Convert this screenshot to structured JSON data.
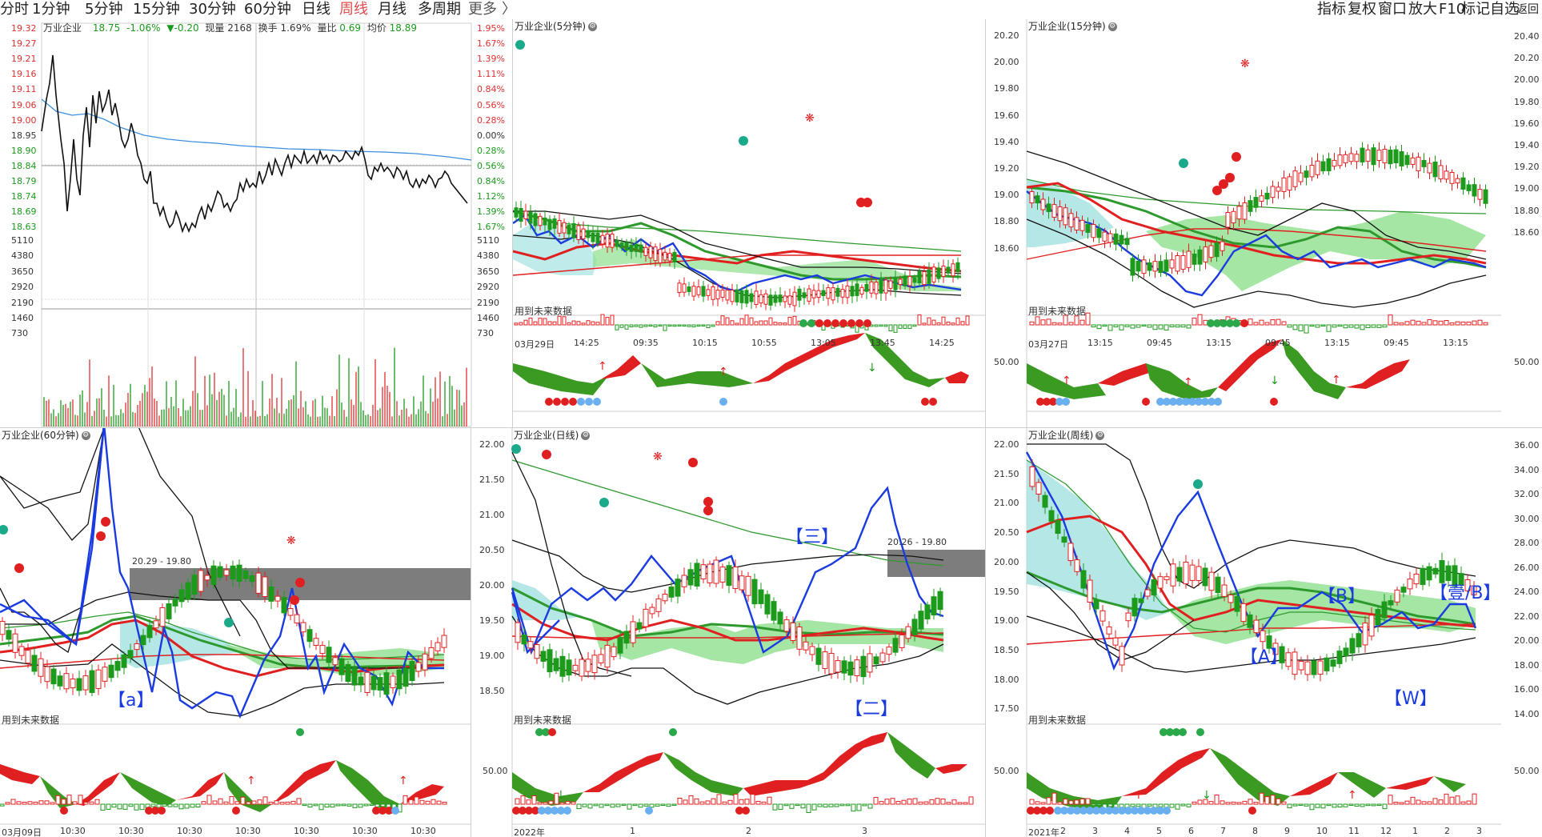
{
  "toolbar": {
    "tabs": [
      {
        "label": "分时"
      },
      {
        "label": "1分钟"
      },
      {
        "label": "5分钟"
      },
      {
        "label": "15分钟"
      },
      {
        "label": "30分钟"
      },
      {
        "label": "60分钟"
      },
      {
        "label": "日线"
      },
      {
        "label": "周线",
        "active": true
      },
      {
        "label": "月线"
      },
      {
        "label": "多周期"
      },
      {
        "label": "更多"
      }
    ],
    "more_chevron": "〉",
    "right_tools": [
      {
        "label": "指标"
      },
      {
        "label": "复权"
      },
      {
        "label": "窗口"
      },
      {
        "label": "放大"
      },
      {
        "label": "F10"
      },
      {
        "label": "标记"
      },
      {
        "label": "自选"
      },
      {
        "label": "返回"
      }
    ]
  },
  "intraday": {
    "name": "万业企业",
    "price": "18.75",
    "change_pct": "-1.06%",
    "change": "▼-0.20",
    "volume_label": "现量",
    "volume": "2168",
    "turnover_label": "换手",
    "turnover": "1.69%",
    "vol_ratio_label": "量比",
    "vol_ratio": "0.69",
    "avg_label": "均价",
    "avg_price": "18.89",
    "price_axis_left": [
      "19.32",
      "19.27",
      "19.21",
      "19.16",
      "19.11",
      "19.06",
      "19.00",
      "18.95",
      "18.90",
      "18.84",
      "18.79",
      "18.74",
      "18.69",
      "18.63"
    ],
    "pct_axis_right": [
      "1.95%",
      "1.67%",
      "1.39%",
      "1.11%",
      "0.84%",
      "0.56%",
      "0.28%",
      "0.00%",
      "0.28%",
      "0.56%",
      "0.84%",
      "1.12%",
      "1.39%",
      "1.67%"
    ],
    "vol_axis": [
      "5110",
      "4380",
      "3650",
      "2920",
      "2190",
      "1460",
      "730"
    ],
    "colors": {
      "up": "#e03030",
      "down": "#1c9a1c",
      "price": "#111111",
      "avg": "#3b8fe0"
    }
  },
  "panels": {
    "p5": {
      "title": "万业企业(5分钟)",
      "future_note": "用到未来数据",
      "price_axis": [],
      "osc_axis": "",
      "x_ticks": [
        "03月29日",
        "14:25",
        "09:35",
        "10:15",
        "10:55",
        "13:05",
        "13:45",
        "14:25"
      ]
    },
    "p15": {
      "title": "万业企业(15分钟)",
      "future_note": "用到未来数据",
      "price_axis": [
        "20.20",
        "20.00",
        "19.80",
        "19.60",
        "19.40",
        "19.20",
        "19.00",
        "18.80",
        "18.60"
      ],
      "right_axis": [
        "20.40",
        "20.20",
        "20.00",
        "19.80",
        "19.60",
        "19.40",
        "19.20",
        "19.00",
        "18.80",
        "18.60"
      ],
      "osc_axis": "50.00",
      "osc_axis_right": "50.00",
      "x_ticks": [
        "03月27日",
        "13:15",
        "09:45",
        "13:15",
        "09:45",
        "13:15",
        "09:45",
        "13:15"
      ]
    },
    "p60": {
      "title": "万业企业(60分钟)",
      "future_note": "用到未来数据",
      "zone_label": "20.29 - 19.80",
      "annotations": [
        "【a】"
      ],
      "x_ticks": [
        "03月09日",
        "10:30",
        "10:30",
        "10:30",
        "10:30",
        "10:30",
        "10:30",
        "10:30"
      ]
    },
    "pday": {
      "title": "万业企业(日线)",
      "future_note": "用到未来数据",
      "zone_label": "20.26 - 19.80",
      "price_axis": [
        "22.00",
        "21.50",
        "21.00",
        "20.50",
        "20.00",
        "19.50",
        "19.00",
        "18.50"
      ],
      "osc_axis": "50.00",
      "annotations": [
        "【三】",
        "【二】"
      ],
      "x_ticks": [
        "2022年",
        "1",
        "2",
        "3"
      ]
    },
    "pweek": {
      "title": "万业企业(周线)",
      "future_note": "用到未来数据",
      "price_axis": [
        "22.00",
        "21.50",
        "21.00",
        "20.50",
        "20.00",
        "19.50",
        "19.00",
        "18.50",
        "18.00",
        "17.50"
      ],
      "right_axis": [
        "36.00",
        "34.00",
        "32.00",
        "30.00",
        "28.00",
        "26.00",
        "24.00",
        "22.00",
        "20.00",
        "18.00",
        "16.00",
        "14.00"
      ],
      "osc_axis": "50.00",
      "osc_axis_right": "50.00",
      "annotations": [
        "【B】",
        "【壹/B】",
        "【A】",
        "【W】"
      ],
      "x_ticks": [
        "2021年",
        "2",
        "3",
        "4",
        "5",
        "6",
        "7",
        "8",
        "9",
        "10",
        "11",
        "12",
        "1",
        "2",
        "3"
      ]
    }
  }
}
